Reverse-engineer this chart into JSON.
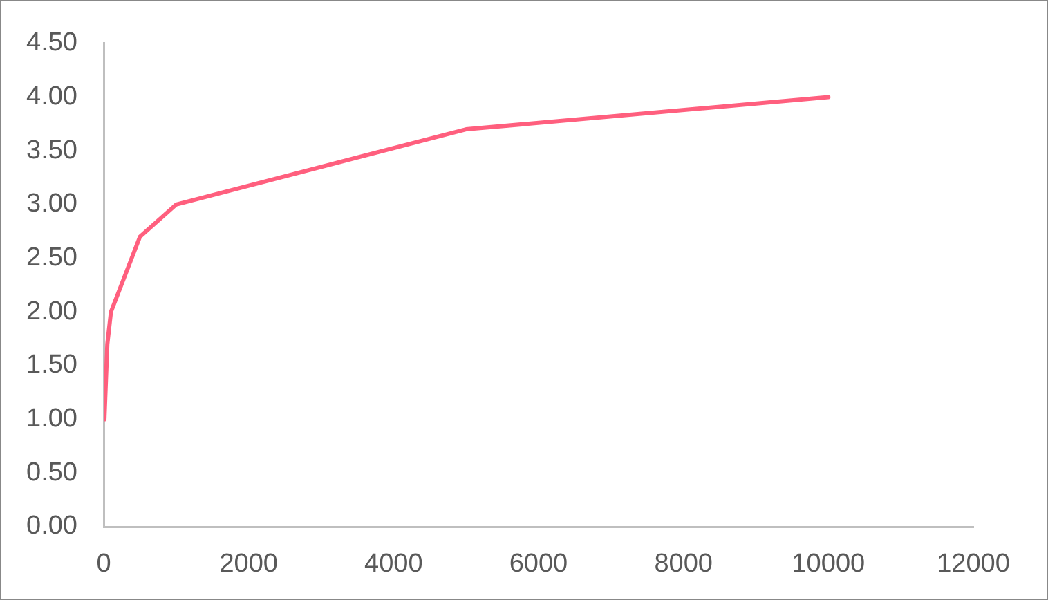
{
  "chart_data": {
    "type": "line",
    "x": [
      10,
      50,
      100,
      500,
      1000,
      5000,
      10000
    ],
    "series": [
      {
        "color": "#ff5f7e",
        "values": [
          1.0,
          1.7,
          2.0,
          2.7,
          3.0,
          3.7,
          4.0
        ]
      }
    ],
    "xlim": [
      0,
      12000
    ],
    "xticks": [
      0,
      2000,
      4000,
      6000,
      8000,
      10000,
      12000
    ],
    "ylim": [
      0,
      4.5
    ],
    "yticks": [
      {
        "value": 0,
        "label": "0.00"
      },
      {
        "value": 0.5,
        "label": "0.50"
      },
      {
        "value": 1,
        "label": "1.00"
      },
      {
        "value": 1.5,
        "label": "1.50"
      },
      {
        "value": 2,
        "label": "2.00"
      },
      {
        "value": 2.5,
        "label": "2.50"
      },
      {
        "value": 3,
        "label": "3.00"
      },
      {
        "value": 3.5,
        "label": "3.50"
      },
      {
        "value": 4,
        "label": "4.00"
      },
      {
        "value": 4.5,
        "label": "4.50"
      }
    ],
    "grid": false,
    "legend": false,
    "marker": "none"
  }
}
